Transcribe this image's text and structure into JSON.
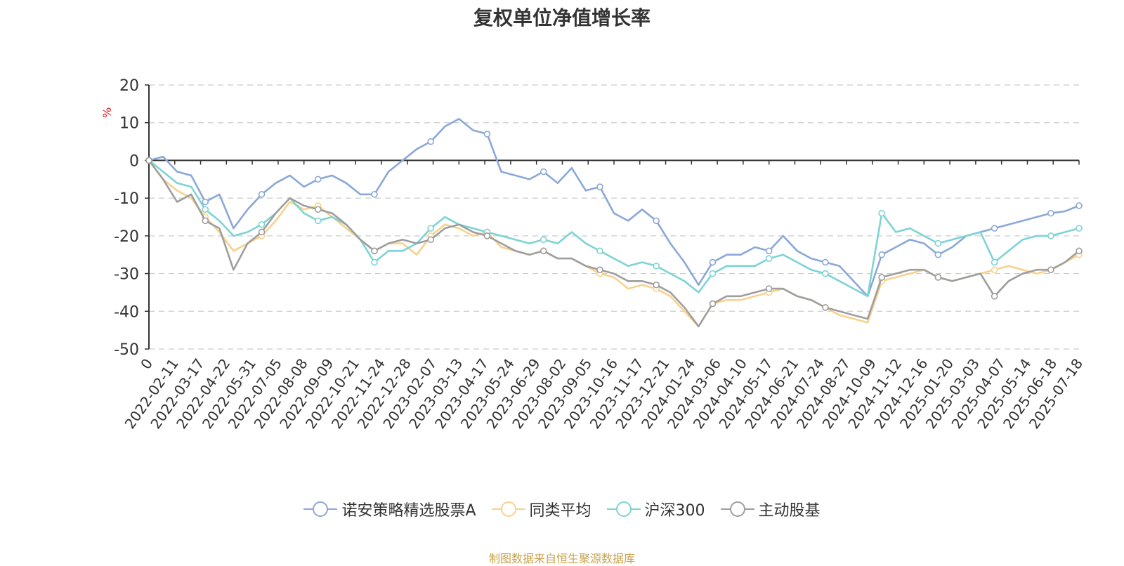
{
  "chart_data": {
    "type": "line",
    "title": "复权单位净值增长率",
    "ylabel": "%",
    "ylim": [
      -50,
      20
    ],
    "yticks": [
      20,
      10,
      0,
      -10,
      -20,
      -30,
      -40,
      -50
    ],
    "grid": true,
    "legend_position": "bottom",
    "x_tick_labels": [
      "0",
      "2022-02-11",
      "2022-03-17",
      "2022-04-22",
      "2022-05-31",
      "2022-07-05",
      "2022-08-08",
      "2022-09-09",
      "2022-10-21",
      "2022-11-24",
      "2022-12-28",
      "2023-02-07",
      "2023-03-13",
      "2023-04-17",
      "2023-05-24",
      "2023-06-29",
      "2023-08-02",
      "2023-09-05",
      "2023-10-16",
      "2023-11-17",
      "2023-12-21",
      "2024-01-24",
      "2024-03-06",
      "2024-04-10",
      "2024-05-17",
      "2024-06-21",
      "2024-07-24",
      "2024-08-27",
      "2024-10-09",
      "2024-11-12",
      "2024-12-16",
      "2025-01-20",
      "2025-03-03",
      "2025-04-07",
      "2025-05-14",
      "2025-06-18",
      "2025-07-18"
    ],
    "series": [
      {
        "name": "诺安策略精选股票A",
        "color": "#8ba8d8",
        "values": [
          0,
          1,
          -3,
          -4,
          -11,
          -9,
          -18,
          -13,
          -9,
          -6,
          -4,
          -7,
          -5,
          -4,
          -6,
          -9,
          -9,
          -3,
          0,
          3,
          5,
          9,
          11,
          8,
          7,
          -3,
          -4,
          -5,
          -3,
          -6,
          -2,
          -8,
          -7,
          -14,
          -16,
          -13,
          -16,
          -22,
          -27,
          -33,
          -27,
          -25,
          -25,
          -23,
          -24,
          -20,
          -24,
          -26,
          -27,
          -28,
          -32,
          -36,
          -25,
          -23,
          -21,
          -22,
          -25,
          -23,
          -20,
          -19,
          -18,
          -17,
          -16,
          -15,
          -14,
          -13.5,
          -12
        ]
      },
      {
        "name": "同类平均",
        "color": "#f8d28c",
        "values": [
          0,
          -5,
          -8,
          -10,
          -15,
          -19,
          -24,
          -22,
          -20,
          -16,
          -11,
          -13,
          -12,
          -15,
          -18,
          -21,
          -24,
          -22,
          -22,
          -25,
          -20,
          -17,
          -18,
          -20,
          -19,
          -23,
          -24,
          -25,
          -24,
          -26,
          -26,
          -28,
          -30,
          -31,
          -34,
          -33,
          -34,
          -36,
          -40,
          -44,
          -38,
          -37,
          -37,
          -36,
          -35,
          -34,
          -36,
          -37,
          -39,
          -41,
          -42,
          -43,
          -32,
          -31,
          -30,
          -29,
          -31,
          -32,
          -31,
          -30,
          -29,
          -28,
          -29,
          -30,
          -29,
          -27,
          -25
        ]
      },
      {
        "name": "沪深300",
        "color": "#7dd3d5",
        "values": [
          0,
          -3,
          -6,
          -7,
          -13,
          -16,
          -20,
          -19,
          -17,
          -14,
          -10,
          -14,
          -16,
          -15,
          -17,
          -21,
          -27,
          -24,
          -24,
          -22,
          -18,
          -15,
          -17,
          -18,
          -19,
          -20,
          -21,
          -22,
          -21,
          -22,
          -19,
          -22,
          -24,
          -26,
          -28,
          -27,
          -28,
          -30,
          -32,
          -35,
          -30,
          -28,
          -28,
          -28,
          -26,
          -25,
          -27,
          -29,
          -30,
          -32,
          -34,
          -36,
          -14,
          -19,
          -18,
          -20,
          -22,
          -21,
          -20,
          -19,
          -27,
          -24,
          -21,
          -20,
          -20,
          -19,
          -18
        ]
      },
      {
        "name": "主动股基",
        "color": "#9e9e9e",
        "values": [
          0,
          -5,
          -11,
          -9,
          -16,
          -18,
          -29,
          -22,
          -19,
          -14,
          -10,
          -12,
          -13,
          -14,
          -17,
          -21,
          -24,
          -22,
          -21,
          -22,
          -21,
          -18,
          -17,
          -19,
          -20,
          -22,
          -24,
          -25,
          -24,
          -26,
          -26,
          -28,
          -29,
          -30,
          -32,
          -32,
          -33,
          -35,
          -39,
          -44,
          -38,
          -36,
          -36,
          -35,
          -34,
          -34,
          -36,
          -37,
          -39,
          -40,
          -41,
          -42,
          -31,
          -30,
          -29,
          -29,
          -31,
          -32,
          -31,
          -30,
          -36,
          -32,
          -30,
          -29,
          -29,
          -27,
          -24
        ]
      }
    ]
  },
  "legend": {
    "items": [
      "诺安策略精选股票A",
      "同类平均",
      "沪深300",
      "主动股基"
    ]
  },
  "source_note": "制图数据来自恒生聚源数据库"
}
